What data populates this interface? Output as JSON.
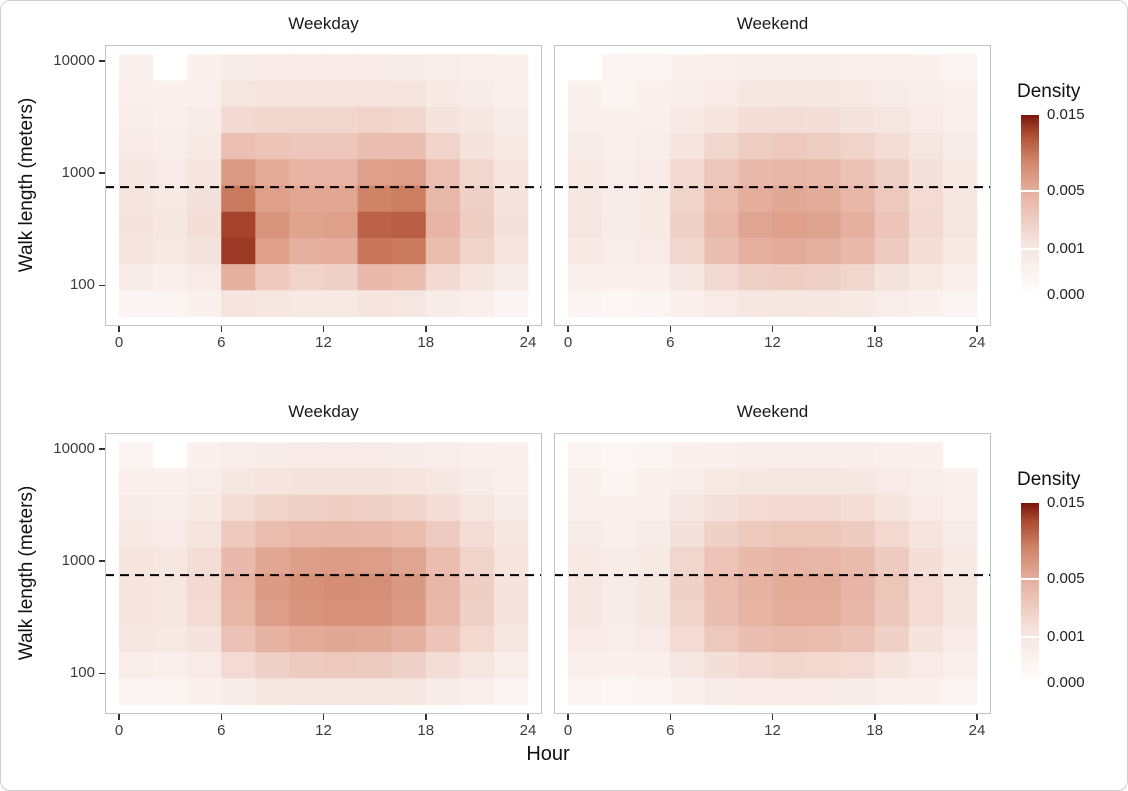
{
  "chart_data": {
    "type": "heatmap",
    "title": "",
    "xlabel": "Hour",
    "ylabel": "Walk length (meters)",
    "x_ticks": [
      0,
      6,
      12,
      18,
      24
    ],
    "y_ticks": [
      100,
      1000,
      10000
    ],
    "x_range": [
      0,
      24
    ],
    "y_scale": "log10",
    "y_range_m": [
      50,
      12000
    ],
    "reference_line_m": 750,
    "facets": [
      "Weekday",
      "Weekend"
    ],
    "legend": {
      "title": "Density",
      "ticks": [
        0.015,
        0.005,
        0.001,
        0
      ],
      "max": 0.015,
      "mapping": "sqrt",
      "position": "right"
    },
    "color_scale": {
      "stops": [
        [
          0,
          "#ffffff"
        ],
        [
          0.3,
          "#f5e2dc"
        ],
        [
          0.55,
          "#e7b4a4"
        ],
        [
          0.75,
          "#d08468"
        ],
        [
          0.9,
          "#ab4a31"
        ],
        [
          1,
          "#7c150a"
        ]
      ]
    },
    "x_bin_centers_hour": [
      1,
      3,
      5,
      7,
      9,
      11,
      13,
      15,
      17,
      19,
      21,
      23
    ],
    "y_bin_centers_m": [
      8770,
      5117,
      2985,
      1742,
      1016,
      593,
      346,
      202,
      118,
      69
    ],
    "panels": [
      {
        "row": 0,
        "col": 0,
        "facet": "Weekday",
        "z": [
          [
            0.0003,
            0,
            0.0003,
            0.0006,
            0.0007,
            0.0007,
            0.0007,
            0.0007,
            0.0006,
            0.0005,
            0.0004,
            0.0003
          ],
          [
            0.0004,
            0.0003,
            0.0004,
            0.001,
            0.0012,
            0.0012,
            0.0012,
            0.0012,
            0.0011,
            0.0008,
            0.0006,
            0.0004
          ],
          [
            0.0005,
            0.0004,
            0.0006,
            0.0018,
            0.002,
            0.002,
            0.002,
            0.0022,
            0.002,
            0.0013,
            0.0009,
            0.0006
          ],
          [
            0.0007,
            0.0005,
            0.0008,
            0.0035,
            0.0032,
            0.003,
            0.003,
            0.0036,
            0.0036,
            0.0022,
            0.0013,
            0.0008
          ],
          [
            0.001,
            0.0007,
            0.0012,
            0.0065,
            0.0052,
            0.0045,
            0.0045,
            0.006,
            0.0062,
            0.0035,
            0.002,
            0.0011
          ],
          [
            0.0012,
            0.0008,
            0.0014,
            0.009,
            0.006,
            0.0055,
            0.0055,
            0.0085,
            0.0088,
            0.0042,
            0.0024,
            0.0013
          ],
          [
            0.0013,
            0.0009,
            0.0015,
            0.0125,
            0.007,
            0.0058,
            0.006,
            0.0105,
            0.0108,
            0.0045,
            0.0026,
            0.0014
          ],
          [
            0.0011,
            0.0008,
            0.0013,
            0.013,
            0.006,
            0.0048,
            0.005,
            0.0092,
            0.009,
            0.0038,
            0.0022,
            0.0012
          ],
          [
            0.0006,
            0.0004,
            0.0007,
            0.0048,
            0.0028,
            0.0022,
            0.0024,
            0.004,
            0.0038,
            0.0018,
            0.0011,
            0.0006
          ],
          [
            0.0002,
            0.0002,
            0.0003,
            0.0012,
            0.0009,
            0.0008,
            0.0008,
            0.0011,
            0.001,
            0.0006,
            0.0004,
            0.0002
          ]
        ]
      },
      {
        "row": 0,
        "col": 1,
        "facet": "Weekend",
        "z": [
          [
            0,
            0.0002,
            0.0002,
            0.0003,
            0.0004,
            0.0005,
            0.0005,
            0.0005,
            0.0004,
            0.0004,
            0.0003,
            0.0002
          ],
          [
            0.0003,
            0.0002,
            0.0003,
            0.0005,
            0.0007,
            0.0009,
            0.0009,
            0.0009,
            0.0008,
            0.0006,
            0.0005,
            0.0003
          ],
          [
            0.0004,
            0.0003,
            0.0004,
            0.0008,
            0.0012,
            0.0015,
            0.0016,
            0.0015,
            0.0013,
            0.001,
            0.0007,
            0.0004
          ],
          [
            0.0006,
            0.0004,
            0.0005,
            0.0012,
            0.002,
            0.0026,
            0.0028,
            0.0026,
            0.0022,
            0.0016,
            0.001,
            0.0006
          ],
          [
            0.0008,
            0.0005,
            0.0007,
            0.0018,
            0.003,
            0.004,
            0.0043,
            0.004,
            0.0034,
            0.0024,
            0.0014,
            0.0008
          ],
          [
            0.0009,
            0.0006,
            0.0008,
            0.0022,
            0.0038,
            0.005,
            0.0054,
            0.0051,
            0.0043,
            0.0029,
            0.0017,
            0.0009
          ],
          [
            0.001,
            0.0006,
            0.0008,
            0.0024,
            0.0042,
            0.0056,
            0.006,
            0.0057,
            0.0048,
            0.0032,
            0.0018,
            0.001
          ],
          [
            0.0008,
            0.0005,
            0.0007,
            0.002,
            0.0036,
            0.0048,
            0.0051,
            0.0048,
            0.004,
            0.0027,
            0.0015,
            0.0008
          ],
          [
            0.0004,
            0.0003,
            0.0004,
            0.001,
            0.0018,
            0.0024,
            0.0026,
            0.0024,
            0.002,
            0.0013,
            0.0008,
            0.0004
          ],
          [
            0.0002,
            0.0001,
            0.0002,
            0.0004,
            0.0007,
            0.0009,
            0.001,
            0.0009,
            0.0008,
            0.0005,
            0.0003,
            0.0002
          ]
        ]
      },
      {
        "row": 1,
        "col": 0,
        "facet": "Weekday",
        "z": [
          [
            0.0002,
            0,
            0.0003,
            0.0005,
            0.0006,
            0.0007,
            0.0007,
            0.0007,
            0.0006,
            0.0005,
            0.0004,
            0.0003
          ],
          [
            0.0004,
            0.0003,
            0.0005,
            0.0009,
            0.0012,
            0.0013,
            0.0013,
            0.0013,
            0.0012,
            0.0009,
            0.0006,
            0.0004
          ],
          [
            0.0006,
            0.0005,
            0.0008,
            0.0016,
            0.0022,
            0.0024,
            0.0025,
            0.0024,
            0.0022,
            0.0016,
            0.001,
            0.0006
          ],
          [
            0.0008,
            0.0007,
            0.0012,
            0.0028,
            0.0038,
            0.0042,
            0.0043,
            0.0042,
            0.0038,
            0.0027,
            0.0016,
            0.0009
          ],
          [
            0.0011,
            0.0009,
            0.0016,
            0.004,
            0.0055,
            0.0061,
            0.0063,
            0.0062,
            0.0056,
            0.0038,
            0.0022,
            0.0012
          ],
          [
            0.0012,
            0.001,
            0.0018,
            0.0046,
            0.0064,
            0.0072,
            0.0075,
            0.0074,
            0.0066,
            0.0044,
            0.0025,
            0.0013
          ],
          [
            0.0012,
            0.001,
            0.0017,
            0.0044,
            0.0062,
            0.007,
            0.0073,
            0.0072,
            0.0064,
            0.0042,
            0.0024,
            0.0013
          ],
          [
            0.0009,
            0.0008,
            0.0013,
            0.0034,
            0.0047,
            0.0052,
            0.0054,
            0.0053,
            0.0048,
            0.0032,
            0.0019,
            0.001
          ],
          [
            0.0005,
            0.0004,
            0.0007,
            0.0017,
            0.0024,
            0.0027,
            0.0028,
            0.0027,
            0.0024,
            0.0016,
            0.001,
            0.0005
          ],
          [
            0.0002,
            0.0002,
            0.0003,
            0.0006,
            0.0009,
            0.001,
            0.001,
            0.001,
            0.0009,
            0.0006,
            0.0004,
            0.0002
          ]
        ]
      },
      {
        "row": 1,
        "col": 1,
        "facet": "Weekend",
        "z": [
          [
            0.0002,
            0.0001,
            0.0002,
            0.0003,
            0.0004,
            0.0005,
            0.0005,
            0.0005,
            0.0005,
            0.0004,
            0.0003,
            0
          ],
          [
            0.0003,
            0.0002,
            0.0003,
            0.0005,
            0.0008,
            0.0009,
            0.001,
            0.001,
            0.0009,
            0.0007,
            0.0005,
            0.0003
          ],
          [
            0.0004,
            0.0003,
            0.0004,
            0.0009,
            0.0014,
            0.0017,
            0.0018,
            0.0018,
            0.0016,
            0.0012,
            0.0007,
            0.0004
          ],
          [
            0.0006,
            0.0004,
            0.0006,
            0.0014,
            0.0023,
            0.0028,
            0.0031,
            0.0031,
            0.0027,
            0.0019,
            0.0011,
            0.0006
          ],
          [
            0.0008,
            0.0006,
            0.0008,
            0.002,
            0.0033,
            0.0041,
            0.0045,
            0.0044,
            0.0039,
            0.0027,
            0.0015,
            0.0008
          ],
          [
            0.0009,
            0.0006,
            0.0009,
            0.0023,
            0.0038,
            0.0047,
            0.0052,
            0.0051,
            0.0045,
            0.0031,
            0.0017,
            0.0009
          ],
          [
            0.0009,
            0.0006,
            0.0009,
            0.0022,
            0.0037,
            0.0046,
            0.005,
            0.005,
            0.0044,
            0.003,
            0.0017,
            0.0009
          ],
          [
            0.0007,
            0.0005,
            0.0007,
            0.0017,
            0.0029,
            0.0036,
            0.0039,
            0.0038,
            0.0034,
            0.0023,
            0.0013,
            0.0007
          ],
          [
            0.0004,
            0.0003,
            0.0004,
            0.0009,
            0.0015,
            0.0018,
            0.002,
            0.0019,
            0.0017,
            0.0012,
            0.0007,
            0.0004
          ],
          [
            0.0002,
            0.0001,
            0.0002,
            0.0003,
            0.0006,
            0.0007,
            0.0007,
            0.0007,
            0.0006,
            0.0004,
            0.0003,
            0.0002
          ]
        ]
      }
    ]
  }
}
